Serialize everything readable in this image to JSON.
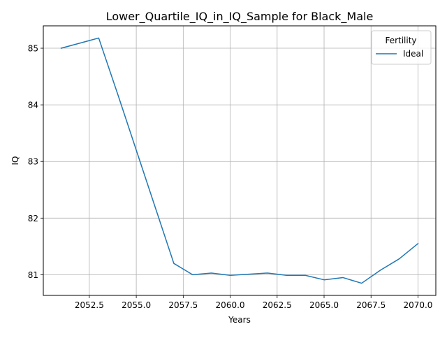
{
  "chart_data": {
    "type": "line",
    "title": "Lower_Quartile_IQ_in_IQ_Sample for Black_Male",
    "xlabel": "Years",
    "ylabel": "IQ",
    "xlim": [
      2050.05,
      2070.95
    ],
    "ylim": [
      80.635,
      85.395
    ],
    "xticks": [
      2052.5,
      2055.0,
      2057.5,
      2060.0,
      2062.5,
      2065.0,
      2067.5,
      2070.0
    ],
    "xtick_labels": [
      "2052.5",
      "2055.0",
      "2057.5",
      "2060.0",
      "2062.5",
      "2065.0",
      "2067.5",
      "2070.0"
    ],
    "yticks": [
      81,
      82,
      83,
      84,
      85
    ],
    "ytick_labels": [
      "81",
      "82",
      "83",
      "84",
      "85"
    ],
    "grid": true,
    "legend": {
      "title": "Fertility",
      "placement": "top-right"
    },
    "series": [
      {
        "name": "Ideal",
        "color": "#1f77b4",
        "x": [
          2051,
          2052,
          2053,
          2054,
          2055,
          2056,
          2057,
          2058,
          2059,
          2060,
          2061,
          2062,
          2063,
          2064,
          2065,
          2066,
          2067,
          2068,
          2069,
          2070
        ],
        "y": [
          85.0,
          85.09,
          85.18,
          84.2,
          83.2,
          82.2,
          81.2,
          81.0,
          81.03,
          80.99,
          81.01,
          81.03,
          80.99,
          80.99,
          80.91,
          80.95,
          80.85,
          81.08,
          81.28,
          81.55
        ]
      }
    ]
  }
}
